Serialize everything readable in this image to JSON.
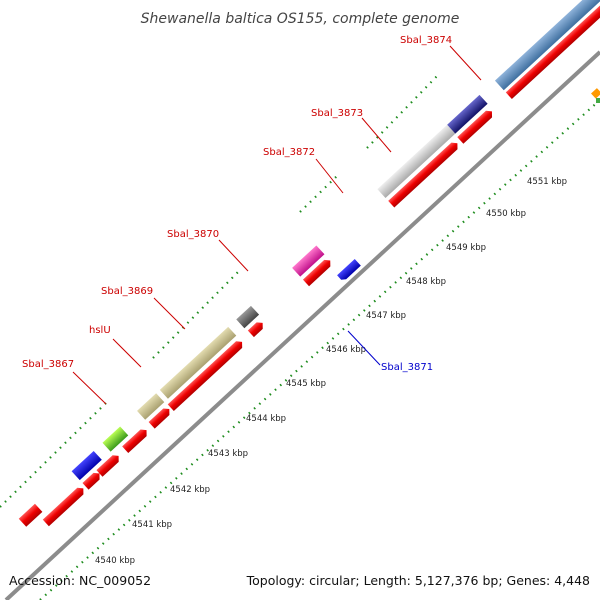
{
  "title": "Shewanella baltica OS155, complete genome",
  "footer": {
    "accession": "Accession: NC_009052",
    "summary": "Topology: circular; Length: 5,127,376 bp; Genes: 4,448"
  },
  "ticks": [
    "4540 kbp",
    "4541 kbp",
    "4542 kbp",
    "4543 kbp",
    "4544 kbp",
    "4545 kbp",
    "4546 kbp",
    "4547 kbp",
    "4548 kbp",
    "4549 kbp",
    "4550 kbp",
    "4551 kbp"
  ],
  "gene_labels": [
    {
      "text": "Sbal_3867",
      "color": "#cc0000"
    },
    {
      "text": "hslU",
      "color": "#cc0000"
    },
    {
      "text": "Sbal_3869",
      "color": "#cc0000"
    },
    {
      "text": "Sbal_3870",
      "color": "#cc0000"
    },
    {
      "text": "Sbal_3872",
      "color": "#cc0000"
    },
    {
      "text": "Sbal_3873",
      "color": "#cc0000"
    },
    {
      "text": "Sbal_3874",
      "color": "#cc0000"
    },
    {
      "text": "Sbal_3871",
      "color": "#0000cc"
    }
  ],
  "colors": {
    "backbone": "#8c8c8c",
    "dotted_ring": "#1e8c1e",
    "cds": "#ee0000",
    "khaki": "#c7be86",
    "steelblue": "#5d8cbd",
    "silver": "#cccccc",
    "magenta": "#ee22aa",
    "gray": "#6a6a6a",
    "lime": "#88dd22",
    "blue": "#1111dd",
    "navy": "#222288",
    "orange": "#ff9900"
  }
}
